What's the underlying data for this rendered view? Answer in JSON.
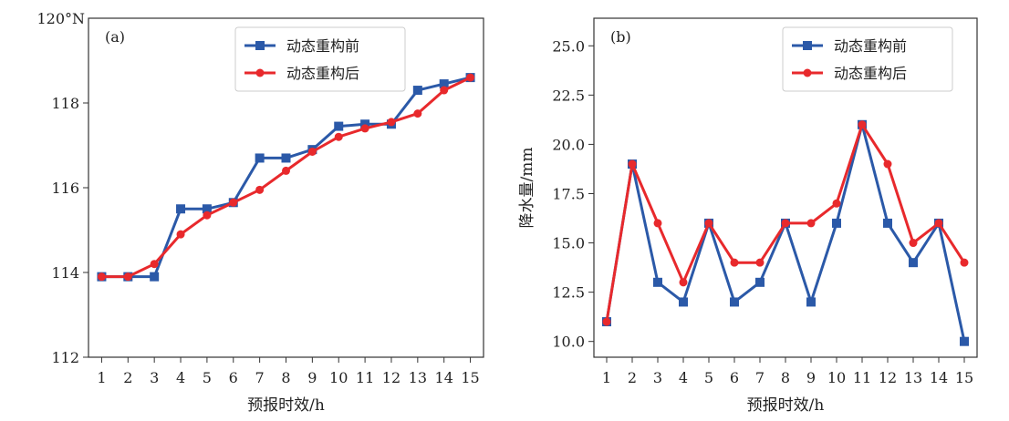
{
  "chart_data": [
    {
      "type": "line",
      "panel_label": "(a)",
      "title": "",
      "xlabel": "预报时效/h",
      "ylabel": "",
      "x": [
        1,
        2,
        3,
        4,
        5,
        6,
        7,
        8,
        9,
        10,
        11,
        12,
        13,
        14,
        15
      ],
      "xlim": [
        0.5,
        15.5
      ],
      "ylim": [
        112,
        120
      ],
      "yticks": [
        112,
        114,
        116,
        118
      ],
      "ytick_labels": [
        "112",
        "114",
        "116",
        "118"
      ],
      "top_tick_label": "120°N",
      "legend_position": "top-right",
      "series": [
        {
          "name": "动态重构前",
          "color": "#2b59a8",
          "marker": "square",
          "values": [
            113.9,
            113.9,
            113.9,
            115.5,
            115.5,
            115.65,
            116.7,
            116.7,
            116.9,
            117.45,
            117.5,
            117.5,
            118.3,
            118.45,
            118.6
          ]
        },
        {
          "name": "动态重构后",
          "color": "#e8292c",
          "marker": "circle",
          "values": [
            113.9,
            113.9,
            114.2,
            114.9,
            115.35,
            115.65,
            115.95,
            116.4,
            116.85,
            117.2,
            117.4,
            117.55,
            117.75,
            118.3,
            118.6
          ]
        }
      ]
    },
    {
      "type": "line",
      "panel_label": "(b)",
      "title": "",
      "xlabel": "预报时效/h",
      "ylabel": "降水量/mm",
      "x": [
        1,
        2,
        3,
        4,
        5,
        6,
        7,
        8,
        9,
        10,
        11,
        12,
        13,
        14,
        15
      ],
      "xlim": [
        0.5,
        15.5
      ],
      "ylim": [
        9.2,
        26.4
      ],
      "yticks": [
        10,
        12.5,
        15,
        17.5,
        20,
        22.5,
        25
      ],
      "ytick_labels": [
        "10.0",
        "12.5",
        "15.0",
        "17.5",
        "20.0",
        "22.5",
        "25.0"
      ],
      "legend_position": "top-right",
      "series": [
        {
          "name": "动态重构前",
          "color": "#2b59a8",
          "marker": "square",
          "values": [
            11,
            19,
            13,
            12,
            16,
            12,
            13,
            16,
            12,
            16,
            21,
            16,
            14,
            16,
            10
          ]
        },
        {
          "name": "动态重构后",
          "color": "#e8292c",
          "marker": "circle",
          "values": [
            11,
            19,
            16,
            13,
            16,
            14,
            14,
            16,
            16,
            17,
            21,
            19,
            15,
            16,
            14
          ]
        }
      ]
    }
  ]
}
